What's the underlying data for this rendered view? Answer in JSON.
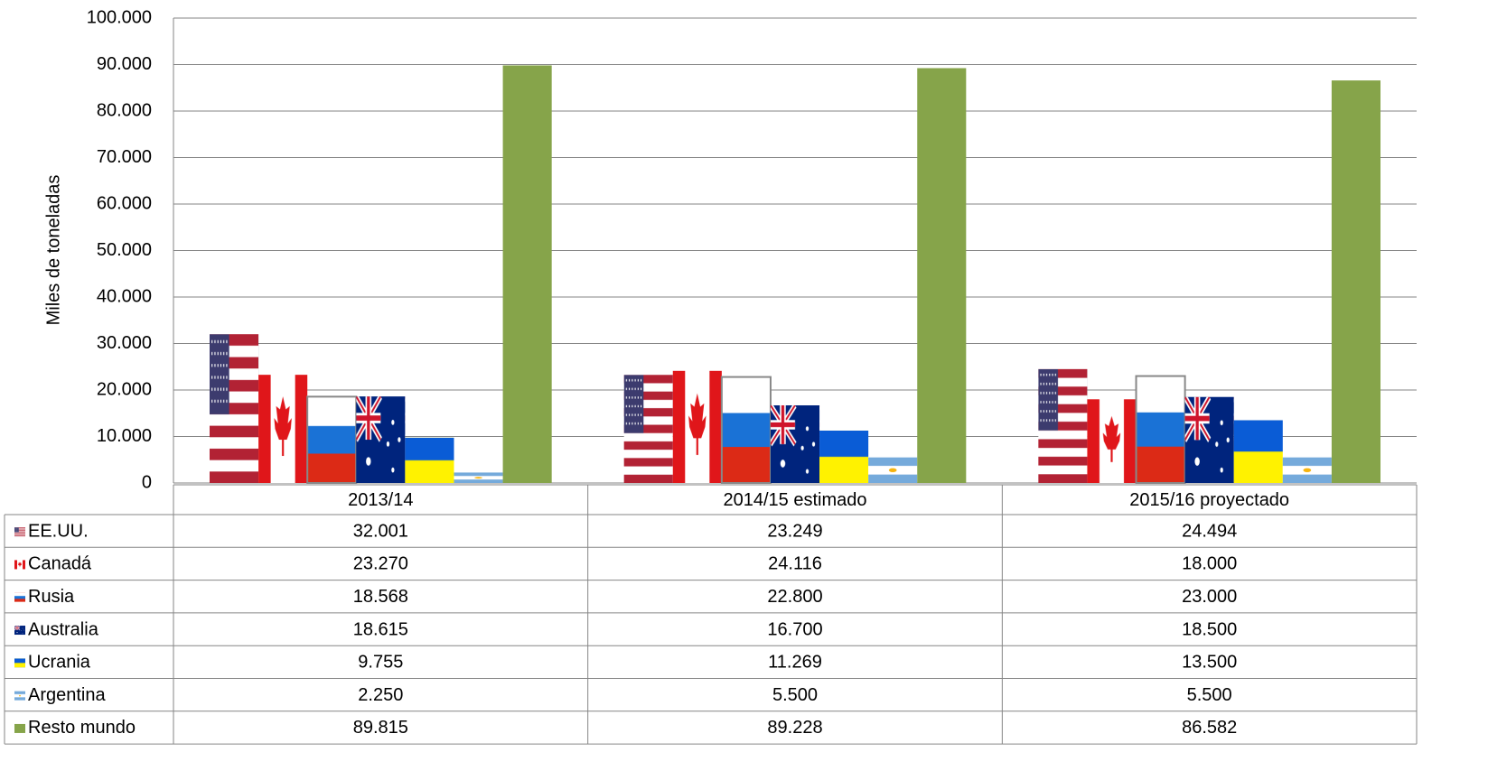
{
  "chart_data": {
    "type": "bar",
    "y_label": "Miles de toneladas",
    "categories": [
      "2013/14",
      "2014/15 estimado",
      "2015/16 proyectado"
    ],
    "series": [
      {
        "name": "EE.UU.",
        "color": "#b22234",
        "values": [
          32001,
          23249,
          24494
        ],
        "value_labels": [
          "32.001",
          "23.249",
          "24.494"
        ]
      },
      {
        "name": "Canadá",
        "color": "#e0161a",
        "values": [
          23270,
          24116,
          18000
        ],
        "value_labels": [
          "23.270",
          "24.116",
          "18.000"
        ]
      },
      {
        "name": "Rusia",
        "color": "#1a72d6",
        "values": [
          18568,
          22800,
          23000
        ],
        "value_labels": [
          "18.568",
          "22.800",
          "23.000"
        ]
      },
      {
        "name": "Australia",
        "color": "#00247d",
        "values": [
          18615,
          16700,
          18500
        ],
        "value_labels": [
          "18.615",
          "16.700",
          "18.500"
        ]
      },
      {
        "name": "Ucrania",
        "color": "#fff200",
        "values": [
          9755,
          11269,
          13500
        ],
        "value_labels": [
          "9.755",
          "11.269",
          "13.500"
        ]
      },
      {
        "name": "Argentina",
        "color": "#75aadb",
        "values": [
          2250,
          5500,
          5500
        ],
        "value_labels": [
          "2.250",
          "5.500",
          "5.500"
        ]
      },
      {
        "name": "Resto mundo",
        "color": "#86a44a",
        "values": [
          89815,
          89228,
          86582
        ],
        "value_labels": [
          "89.815",
          "89.228",
          "86.582"
        ]
      }
    ],
    "ylim": [
      0,
      100000
    ],
    "yticks": [
      0,
      {
        "value": 10000,
        "label": "10.000"
      },
      {
        "value": 20000,
        "label": "20.000"
      },
      {
        "value": 30000,
        "label": "30.000"
      },
      {
        "value": 40000,
        "label": "40.000"
      },
      {
        "value": 50000,
        "label": "50.000"
      },
      {
        "value": 60000,
        "label": "60.000"
      },
      {
        "value": 70000,
        "label": "70.000"
      },
      {
        "value": 80000,
        "label": "80.000"
      },
      {
        "value": 90000,
        "label": "90.000"
      },
      {
        "value": 100000,
        "label": "100.000"
      }
    ],
    "grid": true
  }
}
